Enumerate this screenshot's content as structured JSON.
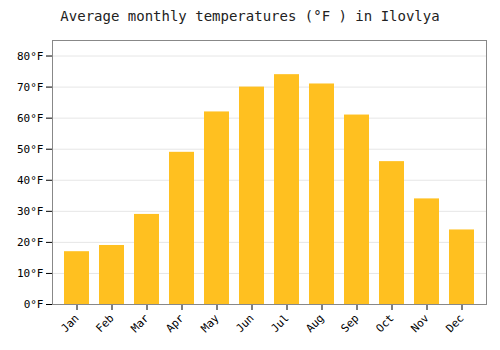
{
  "chart_data": {
    "type": "bar",
    "title": "Average monthly temperatures (°F ) in Ilovlya",
    "categories": [
      "Jan",
      "Feb",
      "Mar",
      "Apr",
      "May",
      "Jun",
      "Jul",
      "Aug",
      "Sep",
      "Oct",
      "Nov",
      "Dec"
    ],
    "values": [
      17,
      19,
      29,
      49,
      62,
      70,
      74,
      71,
      61,
      46,
      34,
      24
    ],
    "color": "#FFC020",
    "ylim": [
      0,
      85
    ],
    "yticks": [
      {
        "value": 0,
        "label": "0°F"
      },
      {
        "value": 10,
        "label": "10°F"
      },
      {
        "value": 20,
        "label": "20°F"
      },
      {
        "value": 30,
        "label": "30°F"
      },
      {
        "value": 40,
        "label": "40°F"
      },
      {
        "value": 50,
        "label": "50°F"
      },
      {
        "value": 60,
        "label": "60°F"
      },
      {
        "value": 70,
        "label": "70°F"
      },
      {
        "value": 80,
        "label": "80°F"
      }
    ],
    "grid": true
  }
}
